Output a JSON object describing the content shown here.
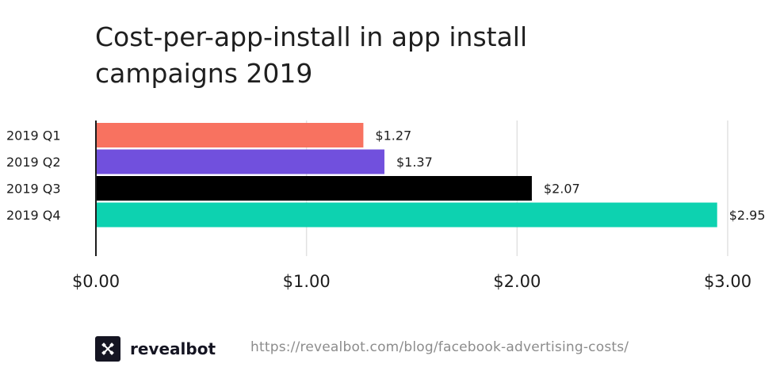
{
  "chart_data": {
    "type": "bar",
    "orientation": "horizontal",
    "title": "Cost-per-app-install in app install campaigns 2019",
    "categories": [
      "2019 Q1",
      "2019 Q2",
      "2019 Q3",
      "2019 Q4"
    ],
    "values": [
      1.27,
      1.37,
      2.07,
      2.95
    ],
    "data_labels": [
      "$1.27",
      "$1.37",
      "$2.07",
      "$2.95"
    ],
    "bar_colors": [
      "#f87260",
      "#7150dd",
      "#000000",
      "#0dd2b0"
    ],
    "xlim": [
      0,
      3
    ],
    "x_ticks": [
      0,
      1,
      2,
      3
    ],
    "x_tick_labels": [
      "$0.00",
      "$1.00",
      "$2.00",
      "$3.00"
    ],
    "grid": true,
    "legend": "none"
  },
  "footer": {
    "brand": "revealbot",
    "source_url": "https://revealbot.com/blog/facebook-advertising-costs/",
    "logo_icon": "revealbot-logo-icon"
  }
}
